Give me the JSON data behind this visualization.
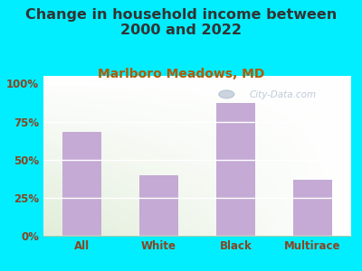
{
  "categories": [
    "All",
    "White",
    "Black",
    "Multirace"
  ],
  "values": [
    68,
    40,
    87,
    37
  ],
  "bar_color": "#c4aad4",
  "title_line1": "Change in household income between",
  "title_line2": "2000 and 2022",
  "subtitle": "Marlboro Meadows, MD",
  "title_fontsize": 11.5,
  "subtitle_fontsize": 10,
  "yticks": [
    0,
    25,
    50,
    75,
    100
  ],
  "yticklabels": [
    "0%",
    "25%",
    "50%",
    "75%",
    "100%"
  ],
  "ylim": [
    0,
    105
  ],
  "bg_outer": "#00eeff",
  "title_color": "#333333",
  "subtitle_color": "#b05a00",
  "tick_color": "#884422",
  "watermark": "City-Data.com"
}
